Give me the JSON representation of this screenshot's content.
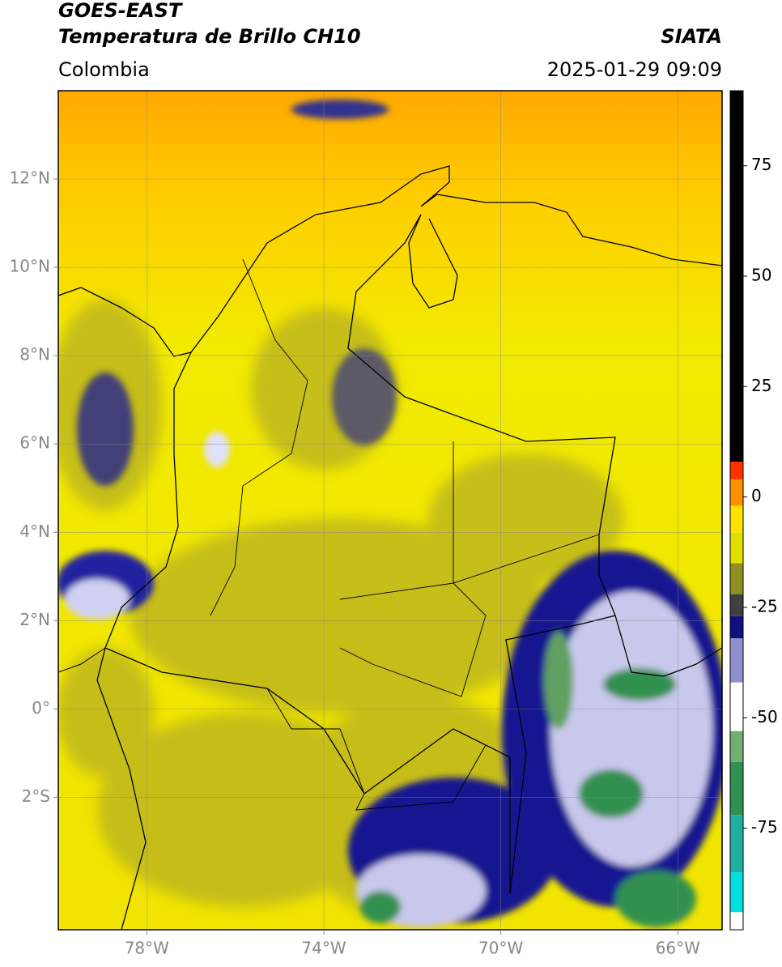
{
  "header": {
    "title": "GOES-EAST",
    "subtitle": "Temperatura de Brillo CH10",
    "source": "SIATA",
    "region": "Colombia",
    "datetime": "2025-01-29 09:09"
  },
  "map": {
    "xlim": [
      -80,
      -65
    ],
    "ylim": [
      -5,
      14
    ],
    "xticks": [
      {
        "value": -78,
        "label": "78°W"
      },
      {
        "value": -74,
        "label": "74°W"
      },
      {
        "value": -70,
        "label": "70°W"
      },
      {
        "value": -66,
        "label": "66°W"
      }
    ],
    "yticks": [
      {
        "value": 12,
        "label": "12°N"
      },
      {
        "value": 10,
        "label": "10°N"
      },
      {
        "value": 8,
        "label": "8°N"
      },
      {
        "value": 6,
        "label": "6°N"
      },
      {
        "value": 4,
        "label": "4°N"
      },
      {
        "value": 2,
        "label": "2°N"
      },
      {
        "value": 0,
        "label": "0°"
      },
      {
        "value": -2,
        "label": "2°S"
      }
    ],
    "grid": true
  },
  "colorbar": {
    "lim": [
      -98,
      92
    ],
    "ticks": [
      75,
      50,
      25,
      0,
      -25,
      -50,
      -75
    ],
    "stops": [
      {
        "value": -98,
        "color": "#ffffff"
      },
      {
        "value": -94,
        "color": "#00e0e0"
      },
      {
        "value": -85,
        "color": "#20b0a0"
      },
      {
        "value": -72,
        "color": "#309050"
      },
      {
        "value": -60,
        "color": "#70b070"
      },
      {
        "value": -53,
        "color": "#ffffff"
      },
      {
        "value": -42,
        "color": "#9090d0"
      },
      {
        "value": -32,
        "color": "#101080"
      },
      {
        "value": -27,
        "color": "#404040"
      },
      {
        "value": -22,
        "color": "#909020"
      },
      {
        "value": -15,
        "color": "#e0e000"
      },
      {
        "value": -8,
        "color": "#ffe000"
      },
      {
        "value": -2,
        "color": "#ff9000"
      },
      {
        "value": 4,
        "color": "#ff3000"
      },
      {
        "value": 8,
        "color": "#000000"
      },
      {
        "value": 92,
        "color": null
      }
    ]
  }
}
